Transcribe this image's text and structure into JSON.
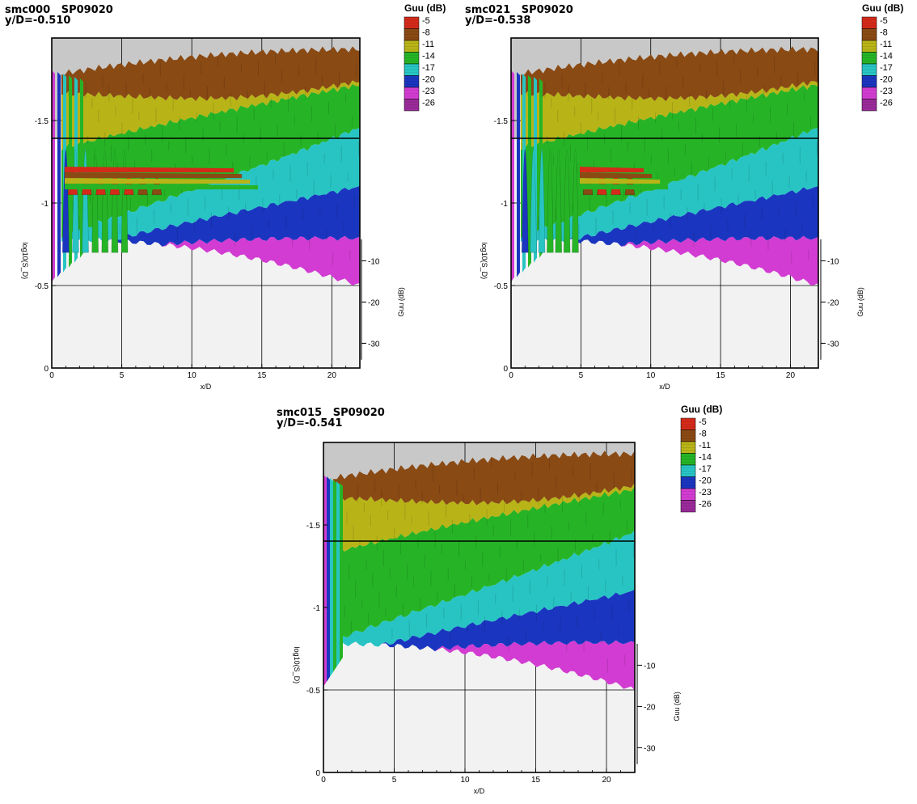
{
  "colors": {
    "levels": [
      "#d42a1a",
      "#8a4a14",
      "#b8b418",
      "#26b426",
      "#28c4c4",
      "#1a36c0",
      "#d23cd2"
    ],
    "upper_band_bg": "#c8c8c8",
    "lower_band_bg": "#f2f2f2"
  },
  "chart_data": [
    {
      "type": "surface",
      "title": "smc000   SP09020",
      "subtitle": "y/D=-0.510",
      "xlabel": "x/D",
      "ylabel": "log10(S_D)",
      "zlabel": "Guu (dB)",
      "xlim": [
        0,
        22
      ],
      "ylim": [
        0,
        2
      ],
      "x_ticks": [
        "0",
        "5",
        "10",
        "15",
        "20"
      ],
      "y_ticks": [
        "0",
        "-0.5",
        "-1",
        "-1.5"
      ],
      "z_ticks": [
        "-10",
        "-20",
        "-30"
      ],
      "legend": {
        "title": "Guu (dB)",
        "levels": [
          "-5",
          "-8",
          "-11",
          "-14",
          "-17",
          "-20",
          "-23",
          "-26"
        ]
      },
      "ridge_peaks_x": [
        1.5,
        2.5,
        3.5,
        4.5,
        5.5,
        6.5,
        7.5
      ],
      "ridge_peaks_level_db": [
        -5,
        -5,
        -5,
        -5,
        -5,
        -8,
        -8
      ]
    },
    {
      "type": "surface",
      "title": "smc021   SP09020",
      "subtitle": "y/D=-0.538",
      "xlabel": "x/D",
      "ylabel": "log10(S_D)",
      "zlabel": "Guu (dB)",
      "xlim": [
        0,
        22
      ],
      "ylim": [
        0,
        2
      ],
      "x_ticks": [
        "0",
        "5",
        "10",
        "15",
        "20"
      ],
      "y_ticks": [
        "0",
        "-0.5",
        "-1",
        "-1.5"
      ],
      "z_ticks": [
        "-10",
        "-20",
        "-30"
      ],
      "legend": {
        "title": "Guu (dB)",
        "levels": [
          "-5",
          "-8",
          "-11",
          "-14",
          "-17",
          "-20",
          "-23",
          "-26"
        ]
      },
      "ridge_peaks_x": [
        5.5,
        6.5,
        7.5,
        8.5
      ],
      "ridge_peaks_level_db": [
        -8,
        -5,
        -5,
        -8
      ]
    },
    {
      "type": "surface",
      "title": "smc015   SP09020",
      "subtitle": "y/D=-0.541",
      "xlabel": "x/D",
      "ylabel": "log10(S_D)",
      "zlabel": "Guu (dB)",
      "xlim": [
        0,
        22
      ],
      "ylim": [
        0,
        2
      ],
      "x_ticks": [
        "0",
        "5",
        "10",
        "15",
        "20"
      ],
      "y_ticks": [
        "0",
        "-0.5",
        "-1",
        "-1.5"
      ],
      "z_ticks": [
        "-10",
        "-20",
        "-30"
      ],
      "legend": {
        "title": "Guu (dB)",
        "levels": [
          "-5",
          "-8",
          "-11",
          "-14",
          "-17",
          "-20",
          "-23",
          "-26"
        ]
      },
      "ridge_peaks_x": [],
      "ridge_peaks_level_db": []
    }
  ]
}
